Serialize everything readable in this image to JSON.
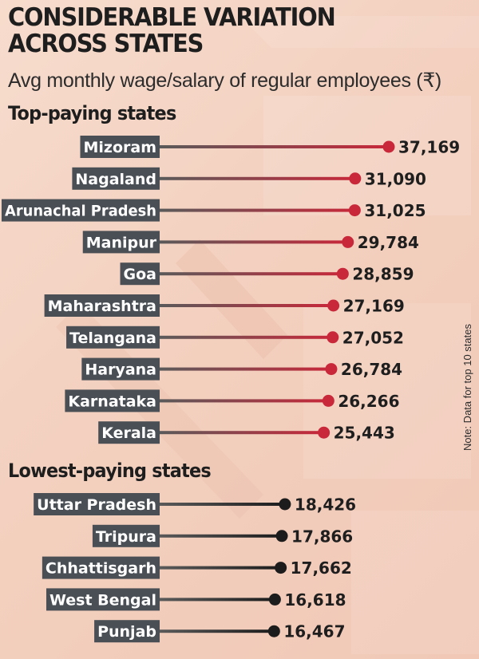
{
  "title_line1": "CONSIDERABLE VARIATION",
  "title_line2": "ACROSS STATES",
  "subtitle": "Avg monthly wage/salary of regular employees (₹)",
  "note": "Note: Data for top 10 states",
  "colors": {
    "top_series": "#c8283a",
    "low_series": "#1c1c1c",
    "label_box": "#4a4f55"
  },
  "chart_data": [
    {
      "type": "bar",
      "title": "Top-paying states",
      "categories": [
        "Mizoram",
        "Nagaland",
        "Arunachal Pradesh",
        "Manipur",
        "Goa",
        "Maharashtra",
        "Telangana",
        "Haryana",
        "Karnataka",
        "Kerala"
      ],
      "values": [
        37169,
        31090,
        31025,
        29784,
        28859,
        27169,
        27052,
        26784,
        26266,
        25443
      ],
      "value_labels": [
        "37,169",
        "31,090",
        "31,025",
        "29,784",
        "28,859",
        "27,169",
        "27,052",
        "26,784",
        "26,266",
        "25,443"
      ]
    },
    {
      "type": "bar",
      "title": "Lowest-paying states",
      "categories": [
        "Uttar Pradesh",
        "Tripura",
        "Chhattisgarh",
        "West Bengal",
        "Punjab"
      ],
      "values": [
        18426,
        17866,
        17662,
        16618,
        16467
      ],
      "value_labels": [
        "18,426",
        "17,866",
        "17,662",
        "16,618",
        "16,467"
      ]
    }
  ]
}
